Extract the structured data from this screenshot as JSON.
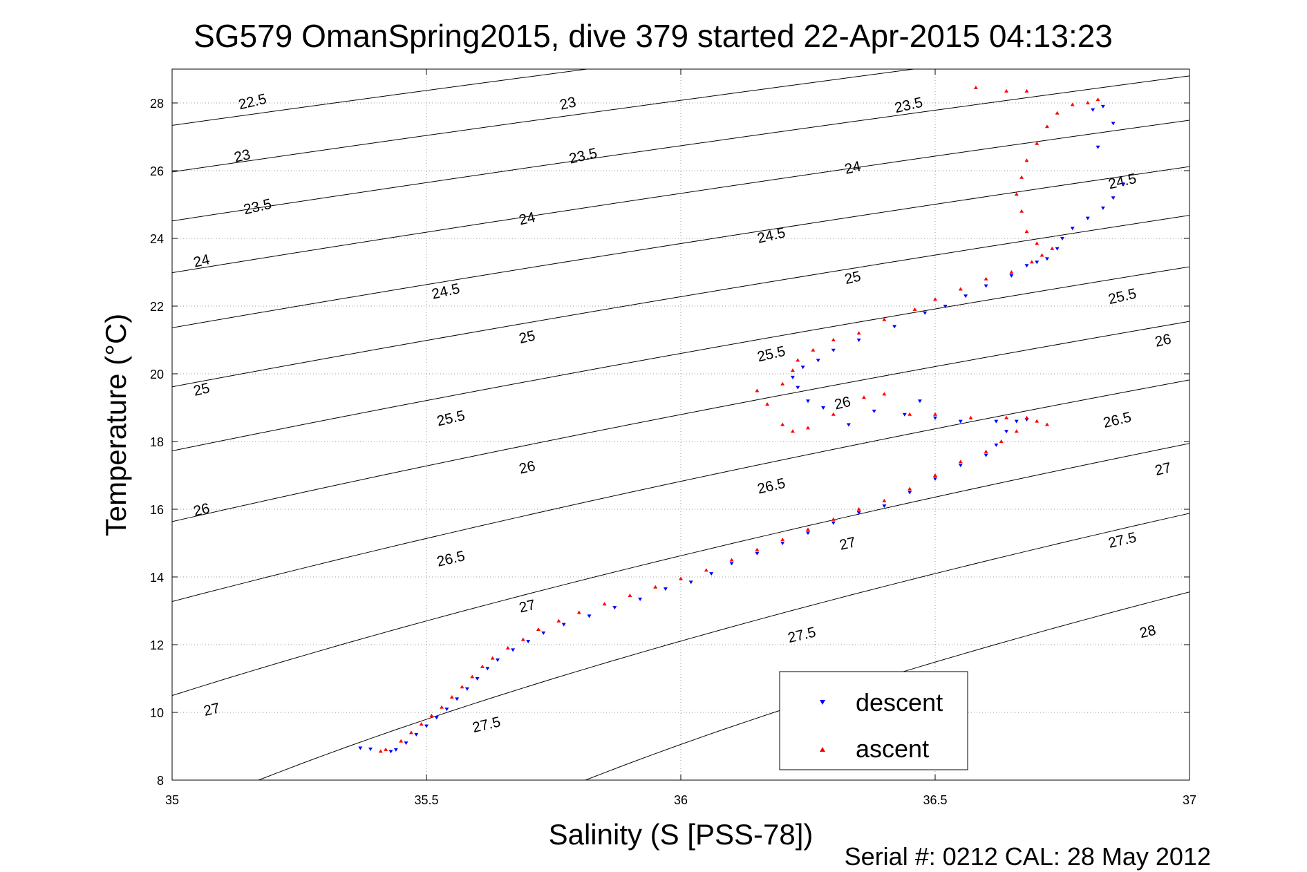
{
  "chart_data": {
    "type": "scatter",
    "title": "SG579 OmanSpring2015, dive 379 started 22-Apr-2015 04:13:23",
    "xlabel": "Salinity (S [PSS-78])",
    "ylabel": "Temperature (°C)",
    "xlim": [
      35,
      37
    ],
    "ylim": [
      8,
      29
    ],
    "xticks": [
      "35",
      "35.5",
      "36",
      "36.5",
      "37"
    ],
    "xtick_values": [
      35,
      35.5,
      36,
      36.5,
      37
    ],
    "yticks": [
      "8",
      "10",
      "12",
      "14",
      "16",
      "18",
      "20",
      "22",
      "24",
      "26",
      "28"
    ],
    "ytick_values": [
      8,
      10,
      12,
      14,
      16,
      18,
      20,
      22,
      24,
      26,
      28
    ],
    "grid": true,
    "legend_position": "bottom-right",
    "series": [
      {
        "name": "descent",
        "color": "#0000ff",
        "marker": "triangle-down",
        "points": [
          [
            35.37,
            8.95
          ],
          [
            35.39,
            8.92
          ],
          [
            35.43,
            8.85
          ],
          [
            35.44,
            8.9
          ],
          [
            35.46,
            9.1
          ],
          [
            35.48,
            9.35
          ],
          [
            35.5,
            9.6
          ],
          [
            35.52,
            9.85
          ],
          [
            35.54,
            10.1
          ],
          [
            35.56,
            10.4
          ],
          [
            35.58,
            10.7
          ],
          [
            35.6,
            11.0
          ],
          [
            35.62,
            11.3
          ],
          [
            35.64,
            11.55
          ],
          [
            35.67,
            11.85
          ],
          [
            35.7,
            12.1
          ],
          [
            35.73,
            12.35
          ],
          [
            35.77,
            12.6
          ],
          [
            35.82,
            12.85
          ],
          [
            35.87,
            13.1
          ],
          [
            35.92,
            13.35
          ],
          [
            35.97,
            13.65
          ],
          [
            36.02,
            13.85
          ],
          [
            36.06,
            14.1
          ],
          [
            36.1,
            14.4
          ],
          [
            36.15,
            14.7
          ],
          [
            36.2,
            15.0
          ],
          [
            36.25,
            15.3
          ],
          [
            36.3,
            15.6
          ],
          [
            36.35,
            15.9
          ],
          [
            36.4,
            16.1
          ],
          [
            36.45,
            16.5
          ],
          [
            36.5,
            16.9
          ],
          [
            36.55,
            17.3
          ],
          [
            36.6,
            17.6
          ],
          [
            36.62,
            17.9
          ],
          [
            36.64,
            18.3
          ],
          [
            36.66,
            18.6
          ],
          [
            36.68,
            18.65
          ],
          [
            36.62,
            18.6
          ],
          [
            36.55,
            18.6
          ],
          [
            36.5,
            18.7
          ],
          [
            36.47,
            19.2
          ],
          [
            36.44,
            18.8
          ],
          [
            36.38,
            18.9
          ],
          [
            36.33,
            18.5
          ],
          [
            36.28,
            19.0
          ],
          [
            36.25,
            19.2
          ],
          [
            36.23,
            19.6
          ],
          [
            36.22,
            19.9
          ],
          [
            36.24,
            20.2
          ],
          [
            36.27,
            20.4
          ],
          [
            36.3,
            20.7
          ],
          [
            36.35,
            21.0
          ],
          [
            36.42,
            21.4
          ],
          [
            36.48,
            21.8
          ],
          [
            36.52,
            22.0
          ],
          [
            36.56,
            22.3
          ],
          [
            36.6,
            22.6
          ],
          [
            36.65,
            22.9
          ],
          [
            36.68,
            23.2
          ],
          [
            36.7,
            23.3
          ],
          [
            36.72,
            23.4
          ],
          [
            36.74,
            23.7
          ],
          [
            36.75,
            24.0
          ],
          [
            36.77,
            24.3
          ],
          [
            36.8,
            24.6
          ],
          [
            36.83,
            24.9
          ],
          [
            36.85,
            25.2
          ],
          [
            36.87,
            25.6
          ],
          [
            36.82,
            26.7
          ],
          [
            36.85,
            27.4
          ],
          [
            36.83,
            27.9
          ],
          [
            36.81,
            27.8
          ]
        ]
      },
      {
        "name": "ascent",
        "color": "#ff0000",
        "marker": "triangle-up",
        "points": [
          [
            35.41,
            8.85
          ],
          [
            35.42,
            8.9
          ],
          [
            35.45,
            9.15
          ],
          [
            35.47,
            9.4
          ],
          [
            35.49,
            9.65
          ],
          [
            35.51,
            9.9
          ],
          [
            35.53,
            10.15
          ],
          [
            35.55,
            10.45
          ],
          [
            35.57,
            10.75
          ],
          [
            35.59,
            11.05
          ],
          [
            35.61,
            11.35
          ],
          [
            35.63,
            11.6
          ],
          [
            35.66,
            11.9
          ],
          [
            35.69,
            12.15
          ],
          [
            35.72,
            12.45
          ],
          [
            35.76,
            12.7
          ],
          [
            35.8,
            12.95
          ],
          [
            35.85,
            13.2
          ],
          [
            35.9,
            13.45
          ],
          [
            35.95,
            13.7
          ],
          [
            36.0,
            13.95
          ],
          [
            36.05,
            14.2
          ],
          [
            36.1,
            14.5
          ],
          [
            36.15,
            14.8
          ],
          [
            36.2,
            15.1
          ],
          [
            36.25,
            15.4
          ],
          [
            36.3,
            15.7
          ],
          [
            36.35,
            16.0
          ],
          [
            36.4,
            16.25
          ],
          [
            36.45,
            16.6
          ],
          [
            36.5,
            17.0
          ],
          [
            36.55,
            17.4
          ],
          [
            36.6,
            17.7
          ],
          [
            36.63,
            18.0
          ],
          [
            36.66,
            18.3
          ],
          [
            36.68,
            18.7
          ],
          [
            36.7,
            18.6
          ],
          [
            36.72,
            18.5
          ],
          [
            36.64,
            18.7
          ],
          [
            36.57,
            18.7
          ],
          [
            36.5,
            18.8
          ],
          [
            36.45,
            18.8
          ],
          [
            36.4,
            19.4
          ],
          [
            36.36,
            19.3
          ],
          [
            36.3,
            18.8
          ],
          [
            36.25,
            18.4
          ],
          [
            36.22,
            18.3
          ],
          [
            36.2,
            18.5
          ],
          [
            36.17,
            19.1
          ],
          [
            36.15,
            19.5
          ],
          [
            36.2,
            19.7
          ],
          [
            36.22,
            20.1
          ],
          [
            36.23,
            20.4
          ],
          [
            36.26,
            20.7
          ],
          [
            36.3,
            21.0
          ],
          [
            36.35,
            21.2
          ],
          [
            36.4,
            21.6
          ],
          [
            36.46,
            21.9
          ],
          [
            36.5,
            22.2
          ],
          [
            36.55,
            22.5
          ],
          [
            36.6,
            22.8
          ],
          [
            36.65,
            23.0
          ],
          [
            36.69,
            23.3
          ],
          [
            36.71,
            23.5
          ],
          [
            36.73,
            23.7
          ],
          [
            36.7,
            23.85
          ],
          [
            36.68,
            24.2
          ],
          [
            36.67,
            24.8
          ],
          [
            36.66,
            25.3
          ],
          [
            36.67,
            25.8
          ],
          [
            36.68,
            26.3
          ],
          [
            36.7,
            26.8
          ],
          [
            36.72,
            27.3
          ],
          [
            36.74,
            27.7
          ],
          [
            36.77,
            27.95
          ],
          [
            36.8,
            28.0
          ],
          [
            36.82,
            28.1
          ],
          [
            36.58,
            28.45
          ],
          [
            36.64,
            28.35
          ],
          [
            36.68,
            28.35
          ]
        ]
      }
    ],
    "contours": [
      {
        "sigma": 22.5,
        "label": "22.5"
      },
      {
        "sigma": 23,
        "label": "23"
      },
      {
        "sigma": 23.5,
        "label": "23.5"
      },
      {
        "sigma": 24,
        "label": "24"
      },
      {
        "sigma": 24.5,
        "label": "24.5"
      },
      {
        "sigma": 25,
        "label": "25"
      },
      {
        "sigma": 25.5,
        "label": "25.5"
      },
      {
        "sigma": 26,
        "label": "26"
      },
      {
        "sigma": 26.5,
        "label": "26.5"
      },
      {
        "sigma": 27,
        "label": "27"
      },
      {
        "sigma": 27.5,
        "label": "27.5"
      },
      {
        "sigma": 28,
        "label": "28"
      }
    ],
    "contour_label_positions": [
      {
        "label": "22.5",
        "s": 35.16,
        "t": 27.9
      },
      {
        "label": "23",
        "s": 35.14,
        "t": 26.3
      },
      {
        "label": "23.5",
        "s": 35.17,
        "t": 24.8
      },
      {
        "label": "24",
        "s": 35.06,
        "t": 23.2
      },
      {
        "label": "25",
        "s": 35.06,
        "t": 19.4
      },
      {
        "label": "26",
        "s": 35.06,
        "t": 15.85
      },
      {
        "label": "27",
        "s": 35.08,
        "t": 9.95
      },
      {
        "label": "23",
        "s": 35.78,
        "t": 27.85
      },
      {
        "label": "23.5",
        "s": 35.81,
        "t": 26.3
      },
      {
        "label": "24",
        "s": 35.7,
        "t": 24.45
      },
      {
        "label": "24.5",
        "s": 35.54,
        "t": 22.3
      },
      {
        "label": "25",
        "s": 35.7,
        "t": 20.95
      },
      {
        "label": "25.5",
        "s": 35.55,
        "t": 18.55
      },
      {
        "label": "26",
        "s": 35.7,
        "t": 17.1
      },
      {
        "label": "26.5",
        "s": 35.55,
        "t": 14.4
      },
      {
        "label": "27",
        "s": 35.7,
        "t": 13.0
      },
      {
        "label": "27.5",
        "s": 35.62,
        "t": 9.5
      },
      {
        "label": "23.5",
        "s": 36.45,
        "t": 27.8
      },
      {
        "label": "24",
        "s": 36.34,
        "t": 25.95
      },
      {
        "label": "24.5",
        "s": 36.18,
        "t": 23.95
      },
      {
        "label": "25",
        "s": 36.34,
        "t": 22.7
      },
      {
        "label": "25.5",
        "s": 36.18,
        "t": 20.45
      },
      {
        "label": "26",
        "s": 36.32,
        "t": 19.0
      },
      {
        "label": "26.5",
        "s": 36.18,
        "t": 16.55
      },
      {
        "label": "27",
        "s": 36.33,
        "t": 14.85
      },
      {
        "label": "27.5",
        "s": 36.24,
        "t": 12.15
      },
      {
        "label": "24.5",
        "s": 36.87,
        "t": 25.55
      },
      {
        "label": "25.5",
        "s": 36.87,
        "t": 22.15
      },
      {
        "label": "26",
        "s": 36.95,
        "t": 20.85
      },
      {
        "label": "26.5",
        "s": 36.86,
        "t": 18.5
      },
      {
        "label": "27",
        "s": 36.95,
        "t": 17.05
      },
      {
        "label": "27.5",
        "s": 36.87,
        "t": 14.95
      },
      {
        "label": "28",
        "s": 36.92,
        "t": 12.25
      }
    ]
  },
  "footer": {
    "serial": "Serial #: 0212  CAL: 28 May 2012"
  }
}
